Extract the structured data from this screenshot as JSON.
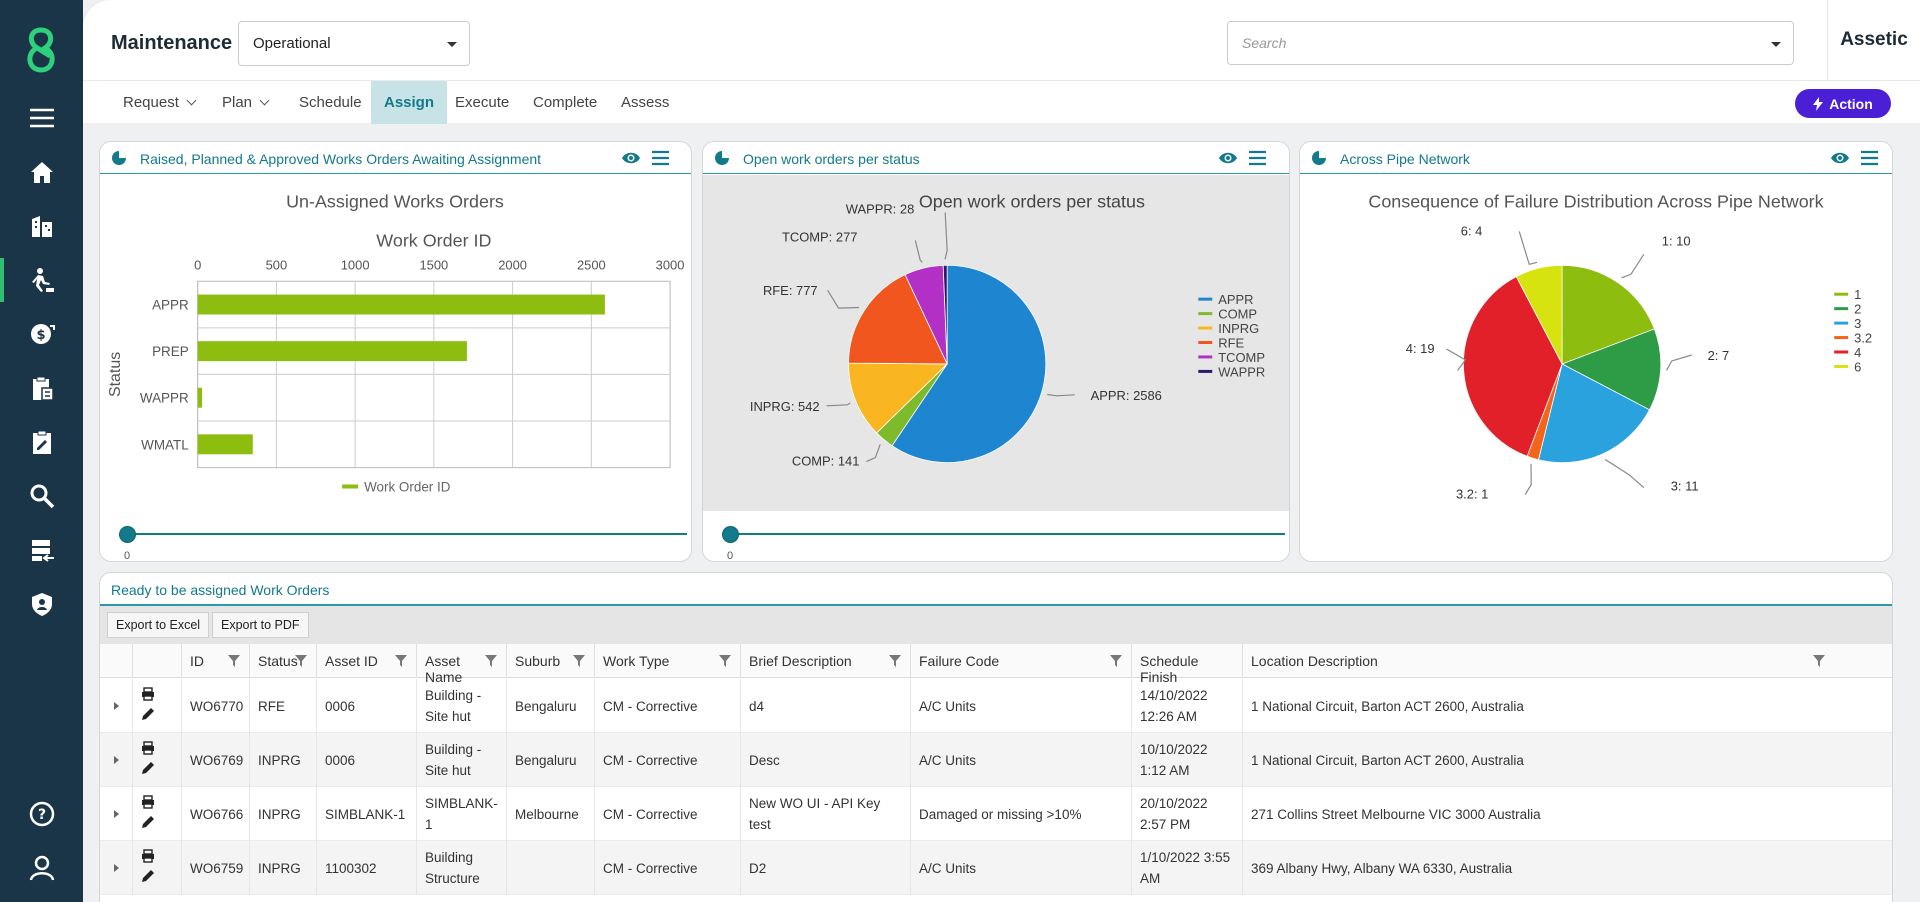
{
  "header": {
    "module_title": "Maintenance",
    "module_select": "Operational",
    "search_placeholder": "Search",
    "brand": "Assetic"
  },
  "sidebar": {
    "items": [
      "menu-icon",
      "home-icon",
      "building-icon",
      "worker-icon",
      "finance-icon",
      "clipboard-calc-icon",
      "clipboard-edit-icon",
      "search-icon",
      "data-transfer-icon",
      "shield-user-icon",
      "help-icon",
      "user-icon"
    ],
    "active": "worker-icon"
  },
  "nav": {
    "tabs": [
      "Request",
      "Plan",
      "Schedule",
      "Assign",
      "Execute",
      "Complete",
      "Assess"
    ],
    "active": "Assign",
    "action_label": "Action"
  },
  "panels": [
    {
      "title": "Raised, Planned & Approved Works Orders Awaiting Assignment",
      "slider_value": "0"
    },
    {
      "title": "Open work orders per status",
      "slider_value": "0"
    },
    {
      "title": "Across Pipe Network"
    }
  ],
  "chart_data": [
    {
      "type": "bar",
      "title": "Un-Assigned Works Orders",
      "subtitle": "Work Order ID",
      "ylabel": "Status",
      "categories": [
        "APPR",
        "PREP",
        "WAPPR",
        "WMATL"
      ],
      "values": [
        2586,
        1710,
        28,
        350
      ],
      "xlim": [
        0,
        3000
      ],
      "xticks": [
        0,
        500,
        1000,
        1500,
        2000,
        2500,
        3000
      ],
      "legend": "Work Order ID",
      "color": "#8cbd0f"
    },
    {
      "type": "pie",
      "title": "Open work orders per status",
      "slices": [
        {
          "label": "APPR",
          "value": 2586,
          "color": "#1e86d0"
        },
        {
          "label": "COMP",
          "value": 141,
          "color": "#7dbb2c"
        },
        {
          "label": "INPRG",
          "value": 542,
          "color": "#f9b620"
        },
        {
          "label": "RFE",
          "value": 777,
          "color": "#f0561d"
        },
        {
          "label": "TCOMP",
          "value": 277,
          "color": "#b330c6"
        },
        {
          "label": "WAPPR",
          "value": 28,
          "color": "#34166b"
        }
      ],
      "data_labels": [
        "APPR: 2586",
        "COMP: 141",
        "INPRG: 542",
        "RFE: 777",
        "TCOMP: 277",
        "WAPPR: 28"
      ]
    },
    {
      "type": "pie",
      "title": "Consequence of Failure Distribution Across Pipe Network",
      "slices": [
        {
          "label": "1",
          "value": 10,
          "color": "#8cbd0f"
        },
        {
          "label": "2",
          "value": 7,
          "color": "#2e9b47"
        },
        {
          "label": "3",
          "value": 11,
          "color": "#2aa2de"
        },
        {
          "label": "3.2",
          "value": 1,
          "color": "#f5641b"
        },
        {
          "label": "4",
          "value": 19,
          "color": "#e1202a"
        },
        {
          "label": "6",
          "value": 4,
          "color": "#d7e30f"
        }
      ],
      "data_labels": [
        "1: 10",
        "2: 7",
        "3: 11",
        "3.2: 1",
        "4: 19",
        "6: 4"
      ]
    }
  ],
  "table": {
    "title": "Ready to be assigned Work Orders",
    "export_excel": "Export to Excel",
    "export_pdf": "Export to PDF",
    "columns": [
      "ID",
      "Status",
      "Asset ID",
      "Asset Name",
      "Suburb",
      "Work Type",
      "Brief Description",
      "Failure Code",
      "Schedule Finish",
      "Location Description"
    ],
    "rows": [
      [
        "WO6770",
        "RFE",
        "0006",
        "Building - Site hut",
        "Bengaluru",
        "CM - Corrective",
        "d4",
        "A/C Units",
        "14/10/2022 12:26 AM",
        "1 National Circuit, Barton ACT 2600, Australia"
      ],
      [
        "WO6769",
        "INPRG",
        "0006",
        "Building - Site hut",
        "Bengaluru",
        "CM - Corrective",
        "Desc",
        "A/C Units",
        "10/10/2022 1:12 AM",
        "1 National Circuit, Barton ACT 2600, Australia"
      ],
      [
        "WO6766",
        "INPRG",
        "SIMBLANK-1",
        "SIMBLANK-1",
        "Melbourne",
        "CM - Corrective",
        "New WO UI - API Key test",
        "Damaged or missing >10%",
        "20/10/2022 2:57 PM",
        "271 Collins Street Melbourne VIC 3000 Australia"
      ],
      [
        "WO6759",
        "INPRG",
        "1100302",
        "Building Structure",
        "",
        "CM - Corrective",
        "D2",
        "A/C Units",
        "1/10/2022 3:55 AM",
        "369 Albany Hwy, Albany WA 6330, Australia"
      ]
    ]
  }
}
